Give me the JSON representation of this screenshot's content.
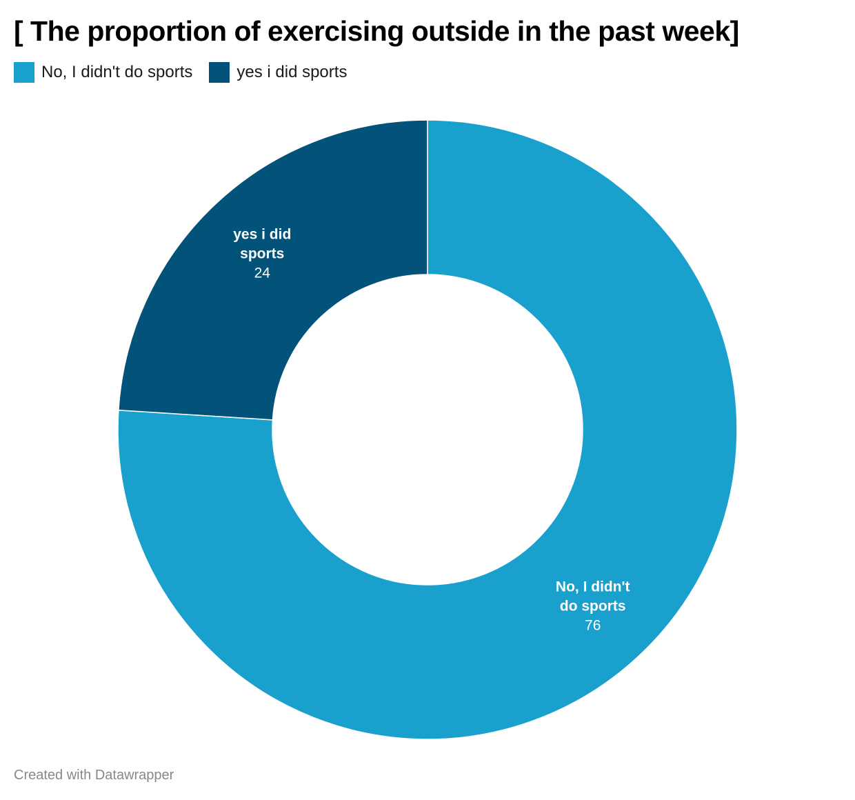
{
  "title": "[ The proportion of exercising outside in the past week]",
  "legend": [
    {
      "label": "No, I didn't do sports",
      "color": "#1aa0cd"
    },
    {
      "label": "yes i did sports",
      "color": "#02527a"
    }
  ],
  "chart_data": {
    "type": "pie",
    "variant": "donut",
    "title": "[ The proportion of exercising outside in the past week]",
    "legend_position": "top-left",
    "slices": [
      {
        "label": "No, I didn't do sports",
        "label_lines": [
          "No, I didn't",
          "do sports"
        ],
        "value": 76,
        "value_label": "76",
        "color": "#1aa0cd"
      },
      {
        "label": "yes i did sports",
        "label_lines": [
          "yes i did",
          "sports"
        ],
        "value": 24,
        "value_label": "24",
        "color": "#02527a"
      }
    ]
  },
  "footer": "Created with Datawrapper"
}
